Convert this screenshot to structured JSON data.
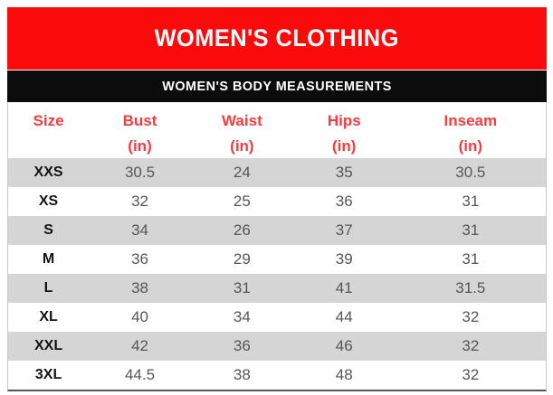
{
  "colors": {
    "banner_red": "#fa0a0a",
    "banner_black": "#0c0c0c",
    "banner_text": "#ffffff",
    "header_text_red": "#fa3a3c",
    "row_alt_gray": "#d5d5d5",
    "number_text": "#55565a",
    "size_label_text": "#131313",
    "table_side_border": "#c9c9c9",
    "table_bottom_border": "#575757"
  },
  "header": {
    "title": "WOMEN'S CLOTHING"
  },
  "subheader": {
    "title": "WOMEN'S BODY MEASUREMENTS"
  },
  "table": {
    "columns": [
      {
        "label": "Size",
        "unit": ""
      },
      {
        "label": "Bust",
        "unit": "(in)"
      },
      {
        "label": "Waist",
        "unit": "(in)"
      },
      {
        "label": "Hips",
        "unit": "(in)"
      },
      {
        "label": "Inseam",
        "unit": "(in)"
      }
    ],
    "rows": [
      {
        "size": "XXS",
        "bust": "30.5",
        "waist": "24",
        "hips": "35",
        "inseam": "30.5"
      },
      {
        "size": "XS",
        "bust": "32",
        "waist": "25",
        "hips": "36",
        "inseam": "31"
      },
      {
        "size": "S",
        "bust": "34",
        "waist": "26",
        "hips": "37",
        "inseam": "31"
      },
      {
        "size": "M",
        "bust": "36",
        "waist": "29",
        "hips": "39",
        "inseam": "31"
      },
      {
        "size": "L",
        "bust": "38",
        "waist": "31",
        "hips": "41",
        "inseam": "31.5"
      },
      {
        "size": "XL",
        "bust": "40",
        "waist": "34",
        "hips": "44",
        "inseam": "32"
      },
      {
        "size": "XXL",
        "bust": "42",
        "waist": "36",
        "hips": "46",
        "inseam": "32"
      },
      {
        "size": "3XL",
        "bust": "44.5",
        "waist": "38",
        "hips": "48",
        "inseam": "32"
      }
    ]
  },
  "chart_data": {
    "type": "table",
    "title": "WOMEN'S CLOTHING",
    "subtitle": "WOMEN'S BODY MEASUREMENTS",
    "columns": [
      "Size",
      "Bust (in)",
      "Waist (in)",
      "Hips (in)",
      "Inseam (in)"
    ],
    "rows": [
      [
        "XXS",
        30.5,
        24,
        35,
        30.5
      ],
      [
        "XS",
        32,
        25,
        36,
        31
      ],
      [
        "S",
        34,
        26,
        37,
        31
      ],
      [
        "M",
        36,
        29,
        39,
        31
      ],
      [
        "L",
        38,
        31,
        41,
        31.5
      ],
      [
        "XL",
        40,
        34,
        44,
        32
      ],
      [
        "XXL",
        42,
        36,
        46,
        32
      ],
      [
        "3XL",
        44.5,
        38,
        48,
        32
      ]
    ],
    "layout": {
      "alternating_row_shading": true,
      "header_text_color": "#fa3a3c",
      "first_shaded_row": "XXS"
    }
  }
}
